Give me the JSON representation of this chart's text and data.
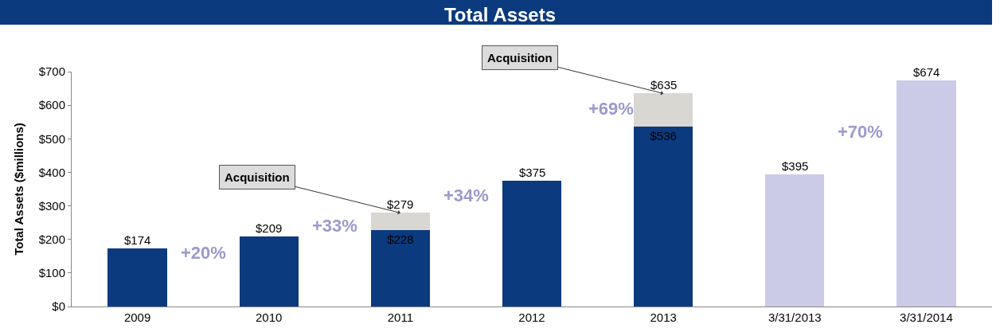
{
  "chart_data": {
    "type": "bar",
    "title": "Total Assets",
    "ylabel": "Total Assets ($millions)",
    "stacked": true,
    "categories": [
      "2009",
      "2010",
      "2011",
      "2012",
      "2013",
      "3/31/2013",
      "3/31/2014"
    ],
    "series": [
      {
        "color": "#0b3a7e",
        "values": [
          174,
          209,
          228,
          375,
          536,
          null,
          null
        ],
        "value_labels": [
          null,
          null,
          "$228",
          null,
          "$536",
          null,
          null
        ]
      },
      {
        "color": "#d9d7d2",
        "values": [
          null,
          null,
          51,
          null,
          99,
          null,
          null
        ]
      },
      {
        "color": "#cbcbe8",
        "values": [
          null,
          null,
          null,
          null,
          null,
          395,
          674
        ]
      }
    ],
    "totals": [
      "$174",
      "$209",
      "$279",
      "$375",
      "$635",
      "$395",
      "$674"
    ],
    "ylim": [
      0,
      700
    ],
    "yticks": [
      {
        "value": 0,
        "label": "$0"
      },
      {
        "value": 100,
        "label": "$100"
      },
      {
        "value": 200,
        "label": "$200"
      },
      {
        "value": 300,
        "label": "$300"
      },
      {
        "value": 400,
        "label": "$400"
      },
      {
        "value": 500,
        "label": "$500"
      },
      {
        "value": 600,
        "label": "$600"
      },
      {
        "value": 700,
        "label": "$700"
      }
    ],
    "annotations": [
      "+20%",
      "+33%",
      "+34%",
      "+69%",
      "+70%",
      {
        "text": "Acquisition",
        "x": "2011",
        "y": 279
      },
      {
        "text": "Acquisition",
        "x": "2013",
        "y": 635
      }
    ]
  }
}
